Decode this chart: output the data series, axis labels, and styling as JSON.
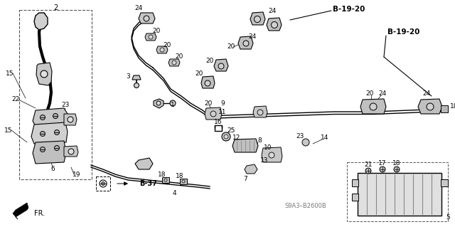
{
  "bg_color": "#ffffff",
  "lc": "#000000",
  "gray": "#888888",
  "lightgray": "#cccccc",
  "figure_width": 6.4,
  "figure_height": 3.19,
  "dpi": 100,
  "labels": {
    "b19_20_1": "B-19-20",
    "b19_20_2": "B-19-20",
    "b37": "B-37",
    "watermark": "S9A3–B2600B",
    "fr": "FR."
  }
}
